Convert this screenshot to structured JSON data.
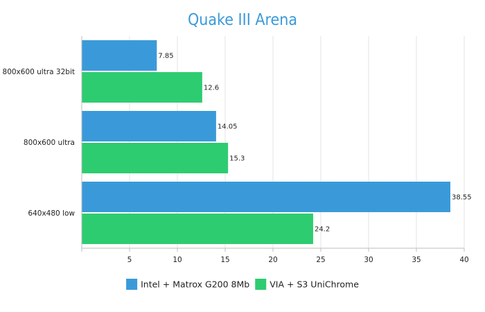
{
  "chart_data": {
    "type": "bar",
    "orientation": "horizontal",
    "title": "Quake III Arena",
    "categories": [
      "800x600 ultra 32bit",
      "800x600 ultra",
      "640x480 low"
    ],
    "series": [
      {
        "name": "Intel + Matrox G200 8Mb",
        "color": "#3a9ad9",
        "values": [
          7.85,
          14.05,
          38.55
        ],
        "labels": [
          "7.85",
          "14.05",
          "38.55"
        ]
      },
      {
        "name": "VIA + S3 UniChrome",
        "color": "#2ecc71",
        "values": [
          12.6,
          15.3,
          24.2
        ],
        "labels": [
          "12.6",
          "15.3",
          "24.2"
        ]
      }
    ],
    "xlim": [
      0,
      40
    ],
    "xticks": [
      5,
      10,
      15,
      20,
      25,
      30,
      35,
      40
    ],
    "xtick_labels": [
      "5",
      "10",
      "15",
      "20",
      "25",
      "30",
      "35",
      "40"
    ],
    "grid": true,
    "legend_position": "bottom-center",
    "xlabel": "",
    "ylabel": ""
  }
}
